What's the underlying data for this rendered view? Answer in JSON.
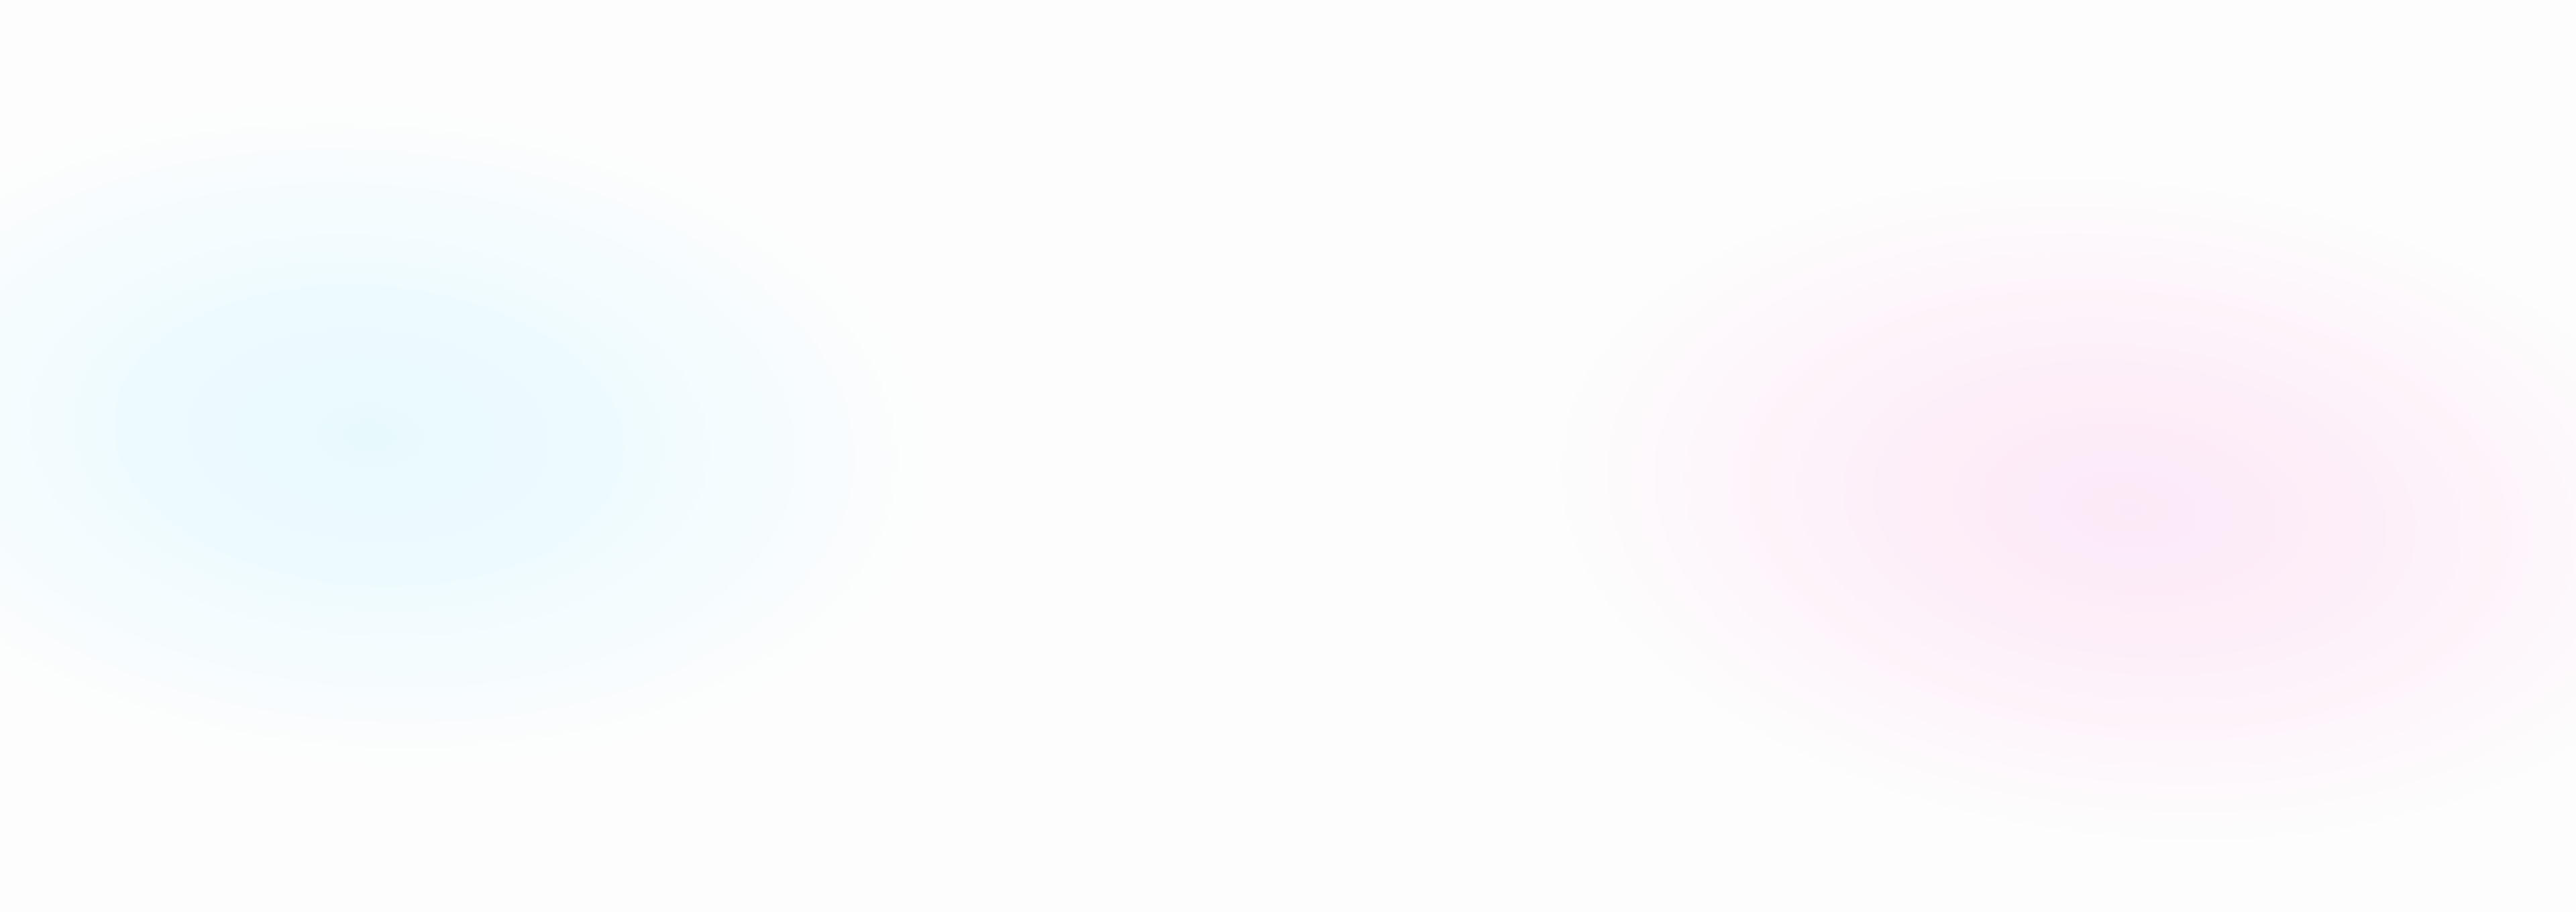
{
  "background": {
    "base_color": "#fdfdfd",
    "glows": [
      {
        "name": "cyan-glow",
        "color": "#f0fcfe"
      },
      {
        "name": "pink-glow",
        "color": "#fdf0f9"
      }
    ]
  }
}
